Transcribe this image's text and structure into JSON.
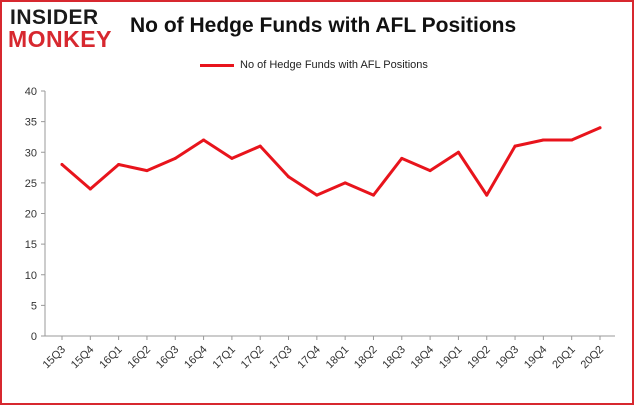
{
  "logo": {
    "top": "INSIDER",
    "bottom": "MONKEY"
  },
  "chart_data": {
    "type": "line",
    "title": "No of Hedge Funds with AFL Positions",
    "xlabel": "",
    "ylabel": "",
    "categories": [
      "15Q3",
      "15Q4",
      "16Q1",
      "16Q2",
      "16Q3",
      "16Q4",
      "17Q1",
      "17Q2",
      "17Q3",
      "17Q4",
      "18Q1",
      "18Q2",
      "18Q3",
      "18Q4",
      "19Q1",
      "19Q2",
      "19Q3",
      "19Q4",
      "20Q1",
      "20Q2"
    ],
    "series": [
      {
        "name": "No of Hedge Funds with AFL Positions",
        "values": [
          28,
          24,
          28,
          27,
          29,
          32,
          29,
          31,
          26,
          23,
          25,
          23,
          29,
          27,
          30,
          23,
          31,
          32,
          32,
          34
        ]
      }
    ],
    "ylim": [
      0,
      40
    ],
    "yticks": [
      0,
      5,
      10,
      15,
      20,
      25,
      30,
      35,
      40
    ],
    "grid": false,
    "legend": "top-center",
    "colors": {
      "line": "#e8141c",
      "axis": "#999999",
      "frame": "#d7282f"
    }
  }
}
